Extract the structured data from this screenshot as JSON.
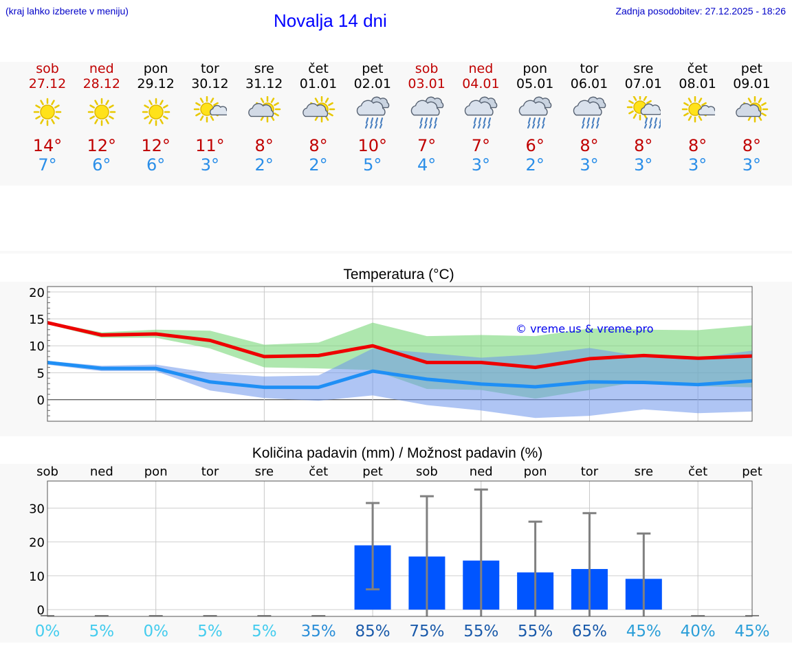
{
  "header": {
    "left_note": "(kraj lahko izberete v meniju)",
    "title": "Novalja 14 dni",
    "last_update": "Zadnja posodobitev: 27.12.2025 - 18:26"
  },
  "colors": {
    "weekend": "#c00000",
    "weekday": "#000000",
    "tmax": "#c00000",
    "tmin": "#2a8ee8",
    "bar": "#0055ff"
  },
  "days": [
    {
      "name": "sob",
      "date": "27.12",
      "weekend": true,
      "icon": "sun-icon",
      "tmax": "14°",
      "tmin": "7°"
    },
    {
      "name": "ned",
      "date": "28.12",
      "weekend": true,
      "icon": "sun-icon",
      "tmax": "12°",
      "tmin": "6°"
    },
    {
      "name": "pon",
      "date": "29.12",
      "weekend": false,
      "icon": "sun-icon",
      "tmax": "12°",
      "tmin": "6°"
    },
    {
      "name": "tor",
      "date": "30.12",
      "weekend": false,
      "icon": "sun-small-cloud-icon",
      "tmax": "11°",
      "tmin": "3°"
    },
    {
      "name": "sre",
      "date": "31.12",
      "weekend": false,
      "icon": "partly-cloudy-icon",
      "tmax": "8°",
      "tmin": "2°"
    },
    {
      "name": "čet",
      "date": "01.01",
      "weekend": false,
      "icon": "partly-cloudy-icon",
      "tmax": "8°",
      "tmin": "2°"
    },
    {
      "name": "pet",
      "date": "02.01",
      "weekend": false,
      "icon": "rain-cloud-icon",
      "tmax": "10°",
      "tmin": "5°"
    },
    {
      "name": "sob",
      "date": "03.01",
      "weekend": true,
      "icon": "rain-cloud-icon",
      "tmax": "7°",
      "tmin": "4°"
    },
    {
      "name": "ned",
      "date": "04.01",
      "weekend": true,
      "icon": "rain-cloud-icon",
      "tmax": "7°",
      "tmin": "3°"
    },
    {
      "name": "pon",
      "date": "05.01",
      "weekend": false,
      "icon": "rain-cloud-icon",
      "tmax": "6°",
      "tmin": "2°"
    },
    {
      "name": "tor",
      "date": "06.01",
      "weekend": false,
      "icon": "rain-cloud-icon",
      "tmax": "8°",
      "tmin": "3°"
    },
    {
      "name": "sre",
      "date": "07.01",
      "weekend": false,
      "icon": "sun-rain-cloud-icon",
      "tmax": "8°",
      "tmin": "3°"
    },
    {
      "name": "čet",
      "date": "08.01",
      "weekend": false,
      "icon": "sun-small-cloud-icon",
      "tmax": "8°",
      "tmin": "3°"
    },
    {
      "name": "pet",
      "date": "09.01",
      "weekend": false,
      "icon": "partly-cloudy-icon",
      "tmax": "8°",
      "tmin": "3°"
    }
  ],
  "chart_data": [
    {
      "type": "line",
      "title": "Temperatura (°C)",
      "watermark": "© vreme.us & vreme.pro",
      "ylim": [
        -4,
        21
      ],
      "yticks": [
        0,
        5,
        10,
        15,
        20
      ],
      "grid": true,
      "x": [
        0,
        1,
        2,
        3,
        4,
        5,
        6,
        7,
        8,
        9,
        10,
        11,
        12,
        13
      ],
      "series": [
        {
          "key": "tmax",
          "color": "#ee0000",
          "values": [
            14.3,
            12.0,
            12.2,
            11.0,
            8.0,
            8.2,
            10.0,
            6.9,
            6.9,
            6.0,
            7.6,
            8.2,
            7.7,
            8.1
          ],
          "band_low": [
            14.0,
            11.5,
            11.5,
            9.5,
            6.0,
            5.8,
            5.5,
            2.0,
            1.8,
            0.2,
            1.8,
            3.5,
            2.5,
            2.3
          ],
          "band_high": [
            14.5,
            12.5,
            13.0,
            12.8,
            10.2,
            10.6,
            14.3,
            11.8,
            12.0,
            11.8,
            13.2,
            13.0,
            12.9,
            13.8
          ]
        },
        {
          "key": "tmin",
          "color": "#1f8ff5",
          "values": [
            6.9,
            5.8,
            5.8,
            3.3,
            2.3,
            2.3,
            5.3,
            3.8,
            2.9,
            2.4,
            3.3,
            3.2,
            2.8,
            3.5
          ],
          "band_low": [
            6.5,
            5.3,
            5.3,
            1.7,
            0.3,
            -0.2,
            0.8,
            -1.0,
            -2.0,
            -3.4,
            -3.0,
            -1.8,
            -2.5,
            -2.2
          ],
          "band_high": [
            7.2,
            6.3,
            6.5,
            5.0,
            4.3,
            4.5,
            9.5,
            8.7,
            7.8,
            8.4,
            9.6,
            8.0,
            7.8,
            9.1
          ]
        }
      ]
    },
    {
      "type": "bar",
      "title": "Količina padavin (mm) / Možnost padavin (%)",
      "categories": [
        "sob",
        "ned",
        "pon",
        "tor",
        "sre",
        "čet",
        "pet",
        "sob",
        "ned",
        "pon",
        "tor",
        "sre",
        "čet",
        "pet"
      ],
      "values": [
        0,
        0,
        0,
        0,
        0,
        0,
        19,
        15.7,
        14.5,
        11,
        12,
        9.1,
        0,
        0
      ],
      "error_low": [
        0,
        0,
        0,
        0,
        0,
        0,
        6,
        0,
        0,
        0,
        0,
        0,
        0,
        0
      ],
      "error_high": [
        0,
        0,
        0,
        0,
        0,
        0,
        31.5,
        33.5,
        35.5,
        26,
        28.5,
        22.5,
        0,
        0
      ],
      "ylim": [
        -2,
        38
      ],
      "yticks": [
        0,
        10,
        20,
        30
      ],
      "grid": true,
      "probability": [
        "0%",
        "5%",
        "0%",
        "5%",
        "5%",
        "35%",
        "85%",
        "75%",
        "55%",
        "55%",
        "65%",
        "45%",
        "40%",
        "45%"
      ],
      "probability_colors": [
        "#44ccee",
        "#44ccee",
        "#44ccee",
        "#44ccee",
        "#44ccee",
        "#2a8ed8",
        "#1a5aaa",
        "#1a5aaa",
        "#1a5aaa",
        "#1a5aaa",
        "#1a5aaa",
        "#2a9ed8",
        "#2a9ed8",
        "#2a9ed8"
      ]
    }
  ]
}
